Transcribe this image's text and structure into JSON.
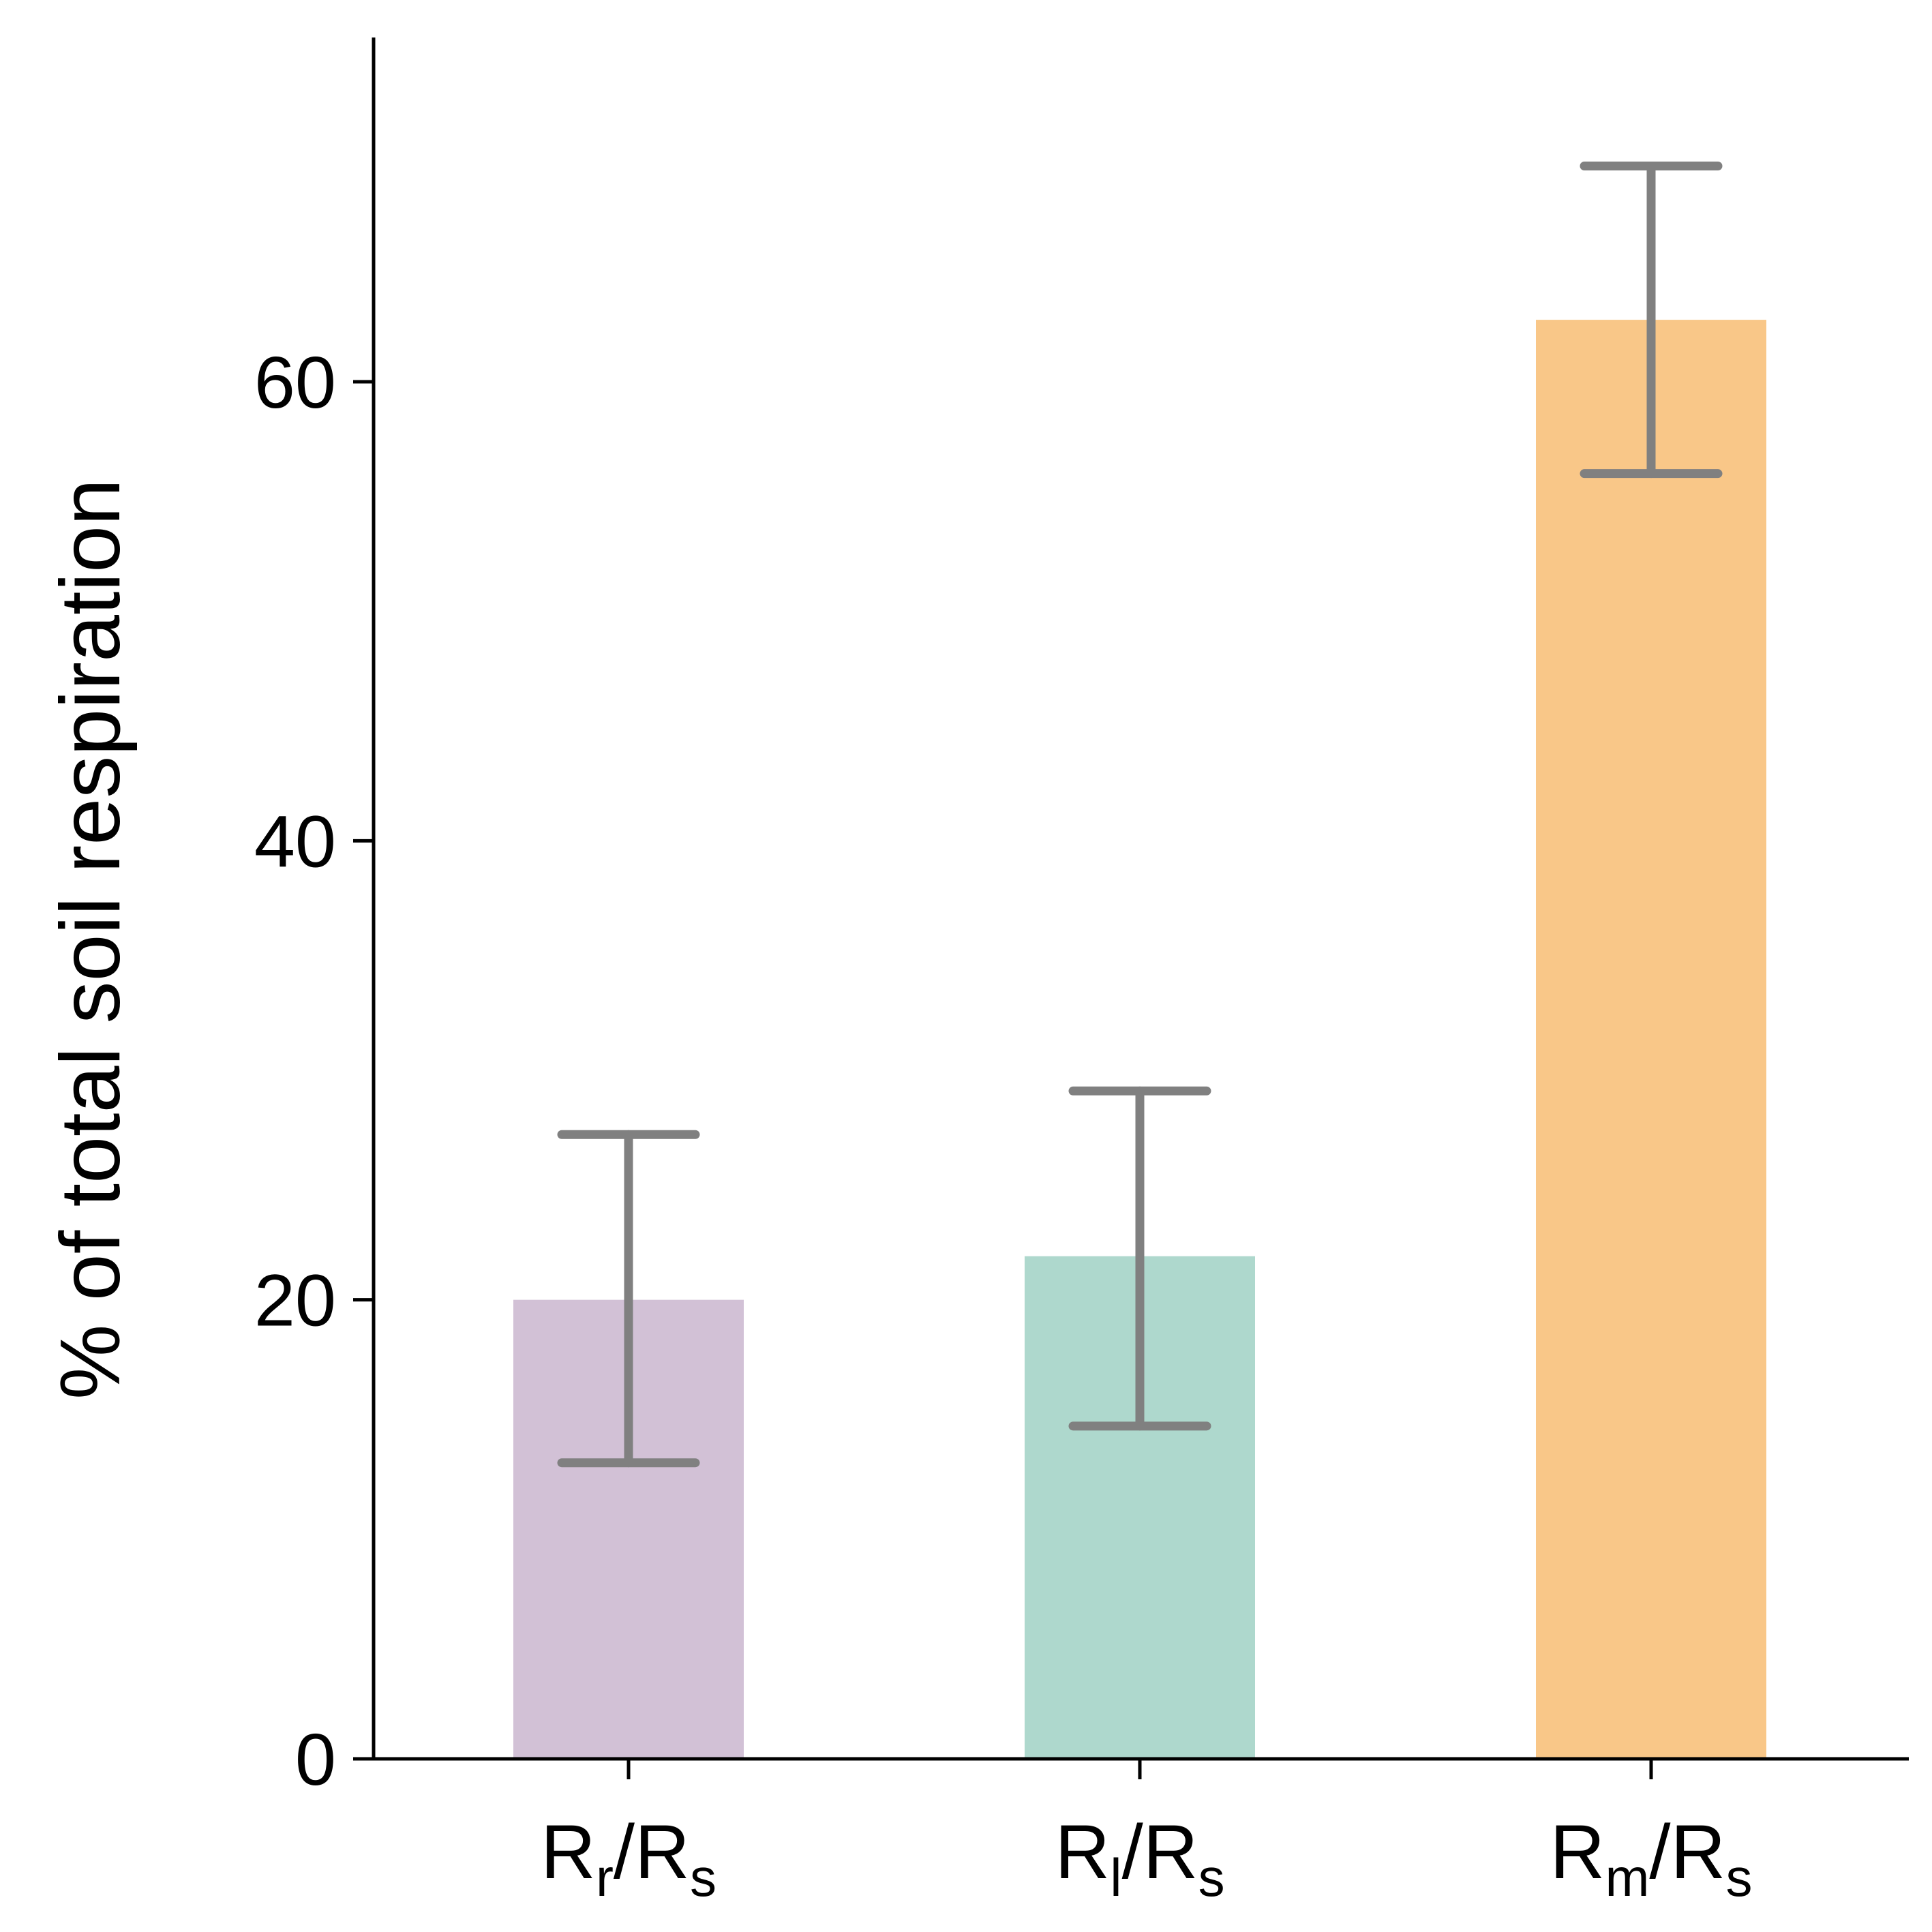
{
  "chart_data": {
    "type": "bar",
    "title": "",
    "xlabel": "",
    "ylabel": "% of total soil respiration",
    "ylim": [
      0,
      75
    ],
    "yticks": [
      0,
      20,
      40,
      60
    ],
    "grid": false,
    "legend": "none",
    "categories": [
      {
        "base": "R",
        "sub": "r",
        "sep": "/",
        "base2": "R",
        "sub2": "s"
      },
      {
        "base": "R",
        "sub": "l",
        "sep": "/",
        "base2": "R",
        "sub2": "s"
      },
      {
        "base": "R",
        "sub": "m",
        "sep": "/",
        "base2": "R",
        "sub2": "s"
      }
    ],
    "values": [
      20,
      21.9,
      62.7
    ],
    "error_low": [
      12.9,
      14.5,
      56.0
    ],
    "error_high": [
      27.2,
      29.1,
      69.4
    ],
    "colors": [
      "#d2c1d6",
      "#aed8cd",
      "#f9c788"
    ],
    "error_color": "#808080"
  }
}
